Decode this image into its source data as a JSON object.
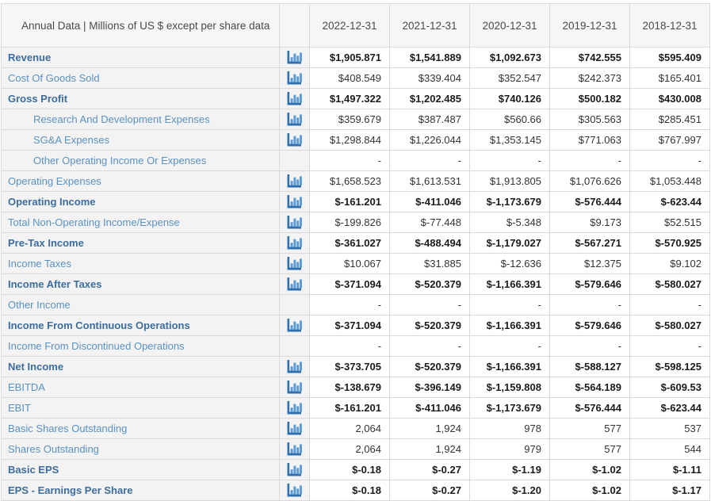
{
  "table": {
    "header": {
      "title": "Annual Data | Millions of US $ except per share data",
      "columns": [
        "2022-12-31",
        "2021-12-31",
        "2020-12-31",
        "2019-12-31",
        "2018-12-31"
      ]
    },
    "icon_name": "bar-chart-icon",
    "empty_value": "-",
    "rows": [
      {
        "label": "Revenue",
        "bold": true,
        "indent": false,
        "icon": true,
        "bold_values": true,
        "values": [
          "$1,905.871",
          "$1,541.889",
          "$1,092.673",
          "$742.555",
          "$595.409"
        ]
      },
      {
        "label": "Cost Of Goods Sold",
        "bold": false,
        "indent": false,
        "icon": true,
        "bold_values": false,
        "values": [
          "$408.549",
          "$339.404",
          "$352.547",
          "$242.373",
          "$165.401"
        ]
      },
      {
        "label": "Gross Profit",
        "bold": true,
        "indent": false,
        "icon": true,
        "bold_values": true,
        "values": [
          "$1,497.322",
          "$1,202.485",
          "$740.126",
          "$500.182",
          "$430.008"
        ]
      },
      {
        "label": "Research And Development Expenses",
        "bold": false,
        "indent": true,
        "icon": true,
        "bold_values": false,
        "values": [
          "$359.679",
          "$387.487",
          "$560.66",
          "$305.563",
          "$285.451"
        ]
      },
      {
        "label": "SG&A Expenses",
        "bold": false,
        "indent": true,
        "icon": true,
        "bold_values": false,
        "values": [
          "$1,298.844",
          "$1,226.044",
          "$1,353.145",
          "$771.063",
          "$767.997"
        ]
      },
      {
        "label": "Other Operating Income Or Expenses",
        "bold": false,
        "indent": true,
        "icon": false,
        "bold_values": false,
        "values": [
          "-",
          "-",
          "-",
          "-",
          "-"
        ]
      },
      {
        "label": "Operating Expenses",
        "bold": false,
        "indent": false,
        "icon": true,
        "bold_values": false,
        "values": [
          "$1,658.523",
          "$1,613.531",
          "$1,913.805",
          "$1,076.626",
          "$1,053.448"
        ]
      },
      {
        "label": "Operating Income",
        "bold": true,
        "indent": false,
        "icon": true,
        "bold_values": true,
        "values": [
          "$-161.201",
          "$-411.046",
          "$-1,173.679",
          "$-576.444",
          "$-623.44"
        ]
      },
      {
        "label": "Total Non-Operating Income/Expense",
        "bold": false,
        "indent": false,
        "icon": true,
        "bold_values": false,
        "values": [
          "$-199.826",
          "$-77.448",
          "$-5.348",
          "$9.173",
          "$52.515"
        ]
      },
      {
        "label": "Pre-Tax Income",
        "bold": true,
        "indent": false,
        "icon": true,
        "bold_values": true,
        "values": [
          "$-361.027",
          "$-488.494",
          "$-1,179.027",
          "$-567.271",
          "$-570.925"
        ]
      },
      {
        "label": "Income Taxes",
        "bold": false,
        "indent": false,
        "icon": true,
        "bold_values": false,
        "values": [
          "$10.067",
          "$31.885",
          "$-12.636",
          "$12.375",
          "$9.102"
        ]
      },
      {
        "label": "Income After Taxes",
        "bold": true,
        "indent": false,
        "icon": true,
        "bold_values": true,
        "values": [
          "$-371.094",
          "$-520.379",
          "$-1,166.391",
          "$-579.646",
          "$-580.027"
        ]
      },
      {
        "label": "Other Income",
        "bold": false,
        "indent": false,
        "icon": false,
        "bold_values": false,
        "values": [
          "-",
          "-",
          "-",
          "-",
          "-"
        ]
      },
      {
        "label": "Income From Continuous Operations",
        "bold": true,
        "indent": false,
        "icon": true,
        "bold_values": true,
        "values": [
          "$-371.094",
          "$-520.379",
          "$-1,166.391",
          "$-579.646",
          "$-580.027"
        ]
      },
      {
        "label": "Income From Discontinued Operations",
        "bold": false,
        "indent": false,
        "icon": false,
        "bold_values": false,
        "values": [
          "-",
          "-",
          "-",
          "-",
          "-"
        ]
      },
      {
        "label": "Net Income",
        "bold": true,
        "indent": false,
        "icon": true,
        "bold_values": true,
        "values": [
          "$-373.705",
          "$-520.379",
          "$-1,166.391",
          "$-588.127",
          "$-598.125"
        ]
      },
      {
        "label": "EBITDA",
        "bold": false,
        "indent": false,
        "icon": true,
        "bold_values": true,
        "values": [
          "$-138.679",
          "$-396.149",
          "$-1,159.808",
          "$-564.189",
          "$-609.53"
        ]
      },
      {
        "label": "EBIT",
        "bold": false,
        "indent": false,
        "icon": true,
        "bold_values": true,
        "values": [
          "$-161.201",
          "$-411.046",
          "$-1,173.679",
          "$-576.444",
          "$-623.44"
        ]
      },
      {
        "label": "Basic Shares Outstanding",
        "bold": false,
        "indent": false,
        "icon": true,
        "bold_values": false,
        "values": [
          "2,064",
          "1,924",
          "978",
          "577",
          "537"
        ]
      },
      {
        "label": "Shares Outstanding",
        "bold": false,
        "indent": false,
        "icon": true,
        "bold_values": false,
        "values": [
          "2,064",
          "1,924",
          "979",
          "577",
          "544"
        ]
      },
      {
        "label": "Basic EPS",
        "bold": true,
        "indent": false,
        "icon": true,
        "bold_values": true,
        "values": [
          "$-0.18",
          "$-0.27",
          "$-1.19",
          "$-1.02",
          "$-1.11"
        ]
      },
      {
        "label": "EPS - Earnings Per Share",
        "bold": true,
        "indent": false,
        "icon": true,
        "bold_values": true,
        "values": [
          "$-0.18",
          "$-0.27",
          "$-1.20",
          "$-1.02",
          "$-1.17"
        ]
      }
    ],
    "colors": {
      "bold_label": "#3d6d9e",
      "regular_label": "#5a91c3",
      "icon_axis": "#2f6fad",
      "icon_bar": "#5b9bd5",
      "row_label_bg": "#f3f3f3",
      "header_bg": "#f6f6f6",
      "grid_border": "#d9d9d9"
    }
  }
}
